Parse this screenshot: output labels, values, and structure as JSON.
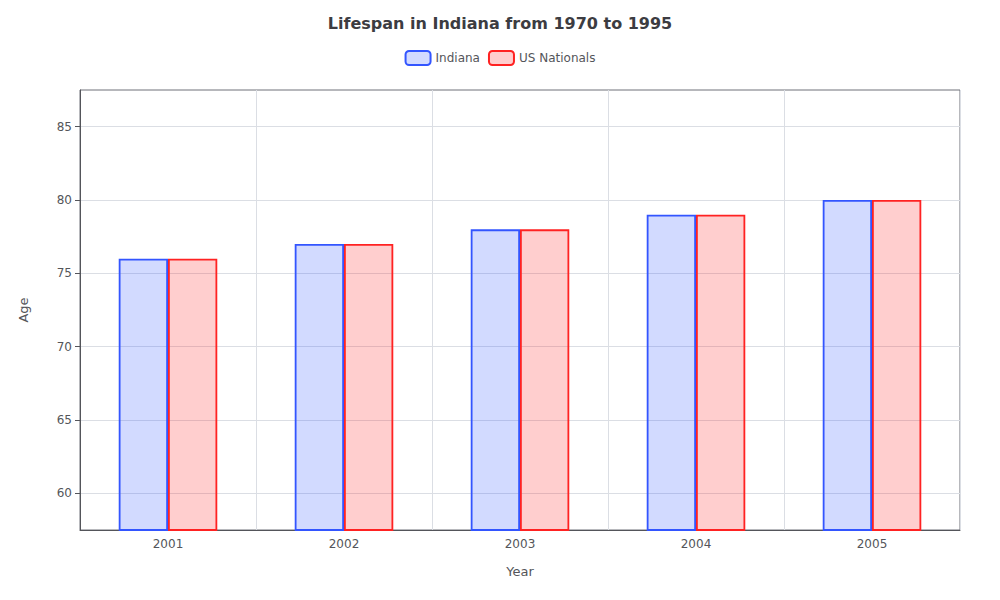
{
  "chart_data": {
    "type": "bar",
    "title": "Lifespan in Indiana from 1970 to 1995",
    "xlabel": "Year",
    "ylabel": "Age",
    "categories": [
      "2001",
      "2002",
      "2003",
      "2004",
      "2005"
    ],
    "series": [
      {
        "name": "Indiana",
        "color": "#3355ff",
        "values": [
          76.0,
          77.0,
          78.0,
          79.0,
          80.0
        ]
      },
      {
        "name": "US Nationals",
        "color": "#ff2222",
        "values": [
          76.0,
          77.0,
          78.0,
          79.0,
          80.0
        ]
      }
    ],
    "ylim": [
      57.5,
      87.5
    ],
    "yticks": [
      60,
      65,
      70,
      75,
      80,
      85
    ],
    "grid": true,
    "legend": "top"
  }
}
